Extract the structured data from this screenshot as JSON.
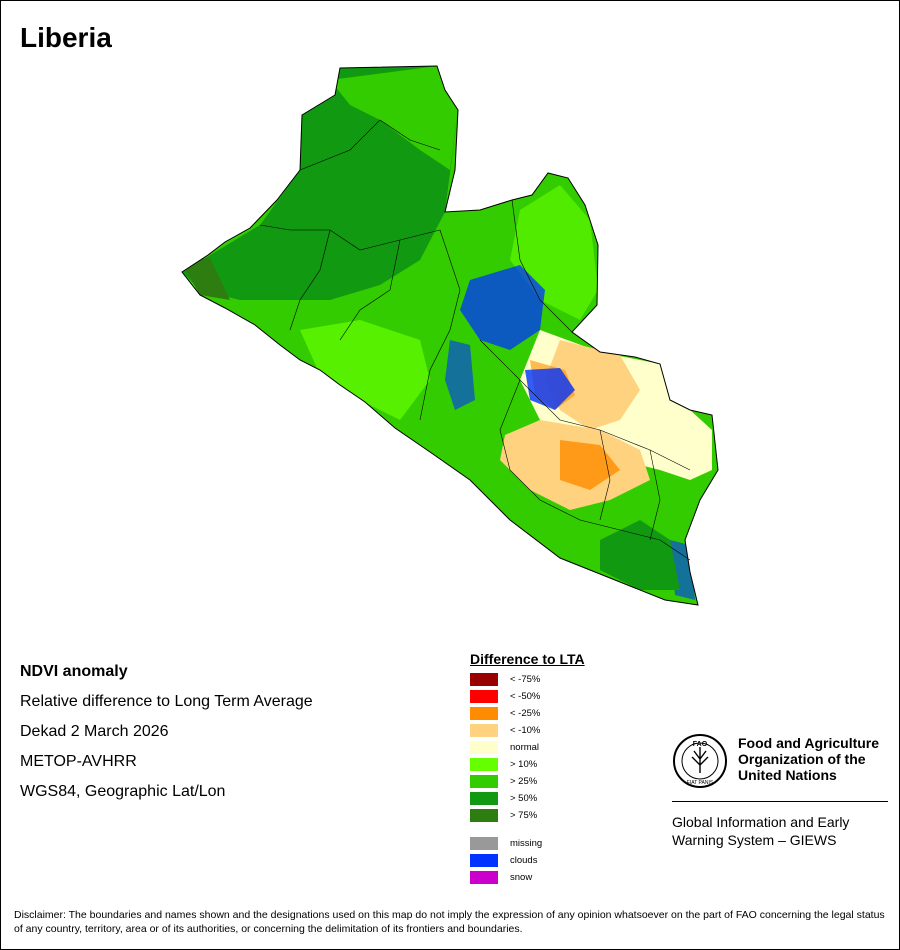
{
  "title": "Liberia",
  "info": {
    "heading": "NDVI anomaly",
    "line1": "Relative difference to Long Term Average",
    "line2": "Dekad 2 March 2026",
    "line3": "METOP-AVHRR",
    "line4": "WGS84, Geographic Lat/Lon"
  },
  "legend": {
    "title": "Difference to LTA",
    "items": [
      {
        "label": "< -75%",
        "color": "#990000"
      },
      {
        "label": "< -50%",
        "color": "#ff0000"
      },
      {
        "label": "< -25%",
        "color": "#ff8c00"
      },
      {
        "label": "< -10%",
        "color": "#ffd27f"
      },
      {
        "label": "normal",
        "color": "#ffffcc"
      },
      {
        "label": "> 10%",
        "color": "#66ff00"
      },
      {
        "label": "> 25%",
        "color": "#33cc00"
      },
      {
        "label": "> 50%",
        "color": "#119911"
      },
      {
        "label": "> 75%",
        "color": "#2e7d10"
      }
    ],
    "extra": [
      {
        "label": "missing",
        "color": "#999999"
      },
      {
        "label": "clouds",
        "color": "#0033ff"
      },
      {
        "label": "snow",
        "color": "#cc00cc"
      }
    ]
  },
  "fao": {
    "name_line1": "Food and Agriculture",
    "name_line2": "Organization of the",
    "name_line3": "United Nations",
    "giews_line1": "Global Information and Early",
    "giews_line2": "Warning System – GIEWS",
    "logo_text": "FAO",
    "logo_motto": "FIAT PANIS"
  },
  "disclaimer": "Disclaimer: The boundaries and names shown and the designations used on this map do not imply the expression of any opinion whatsoever on the part of FAO concerning the legal status of any country, territory, area or of its authorities, or concerning the delimitation of its frontiers and boundaries."
}
